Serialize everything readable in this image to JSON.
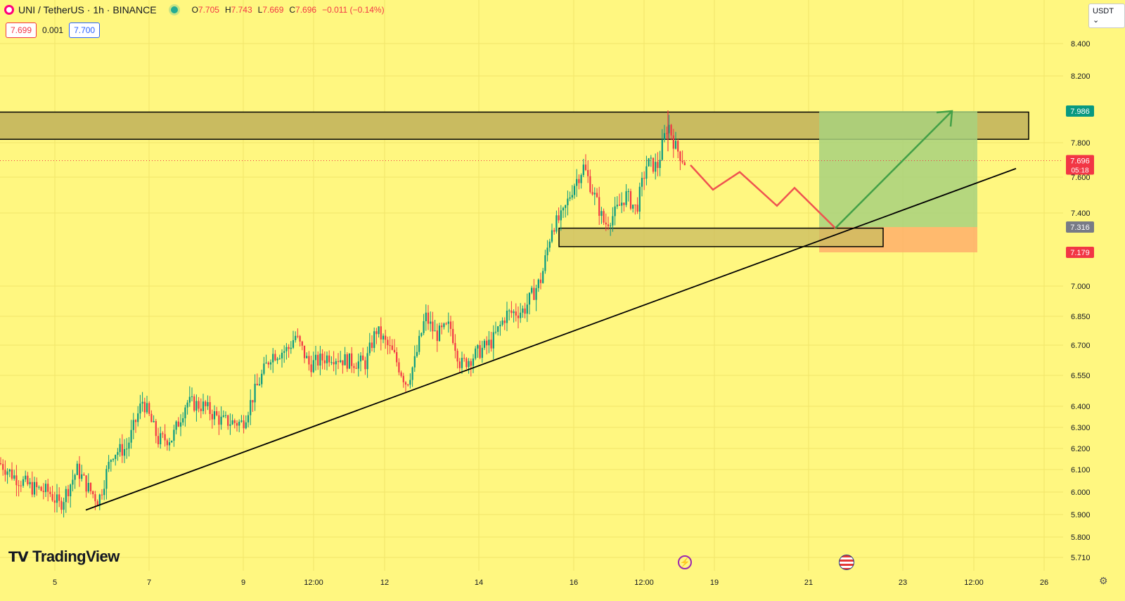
{
  "header": {
    "symbol": "UNI / TetherUS · 1h · BINANCE",
    "open_label": "O",
    "open": "7.705",
    "high_label": "H",
    "high": "7.743",
    "low_label": "L",
    "low": "7.669",
    "close_label": "C",
    "close": "7.696",
    "change": "−0.011 (−0.14%)"
  },
  "quote": {
    "bid": "7.699",
    "spread": "0.001",
    "ask": "7.700"
  },
  "currency_button": "USDT",
  "logo_text": "TradingView",
  "colors": {
    "background": "#fff780",
    "up": "#089981",
    "down": "#f23645",
    "zone": "#c9bb60",
    "target": "#a8d17e",
    "stop": "#ffb36b",
    "projection_up": "#43a047",
    "projection_down": "#ef5350"
  },
  "chart_data": {
    "type": "candlestick",
    "x_tick_labels": [
      "5",
      "7",
      "9",
      "12:00",
      "12",
      "14",
      "16",
      "12:00",
      "19",
      "21",
      "23",
      "12:00",
      "26"
    ],
    "y_tick_labels": [
      "8.400",
      "8.200",
      "7.800",
      "7.600",
      "7.400",
      "7.000",
      "6.850",
      "6.700",
      "6.550",
      "6.400",
      "6.300",
      "6.200",
      "6.100",
      "6.000",
      "5.900",
      "5.800",
      "5.710"
    ],
    "ylim": [
      5.7,
      8.4
    ],
    "price_labels": [
      {
        "value": "7.986",
        "color": "#089981"
      },
      {
        "value": "7.696",
        "color": "#f23645",
        "countdown": "05:18"
      },
      {
        "value": "7.316",
        "color": "#787b86"
      },
      {
        "value": "7.179",
        "color": "#f23645"
      }
    ],
    "current_price": 7.696,
    "anchors": [
      [
        0,
        6.13
      ],
      [
        20,
        6.07
      ],
      [
        45,
        6.02
      ],
      [
        70,
        6.0
      ],
      [
        85,
        5.94
      ],
      [
        110,
        6.1
      ],
      [
        125,
        6.02
      ],
      [
        140,
        5.96
      ],
      [
        160,
        6.18
      ],
      [
        180,
        6.2
      ],
      [
        203,
        6.43
      ],
      [
        225,
        6.24
      ],
      [
        245,
        6.25
      ],
      [
        265,
        6.42
      ],
      [
        290,
        6.4
      ],
      [
        315,
        6.33
      ],
      [
        345,
        6.32
      ],
      [
        360,
        6.45
      ],
      [
        385,
        6.65
      ],
      [
        410,
        6.68
      ],
      [
        420,
        6.75
      ],
      [
        440,
        6.6
      ],
      [
        470,
        6.65
      ],
      [
        495,
        6.62
      ],
      [
        520,
        6.61
      ],
      [
        535,
        6.78
      ],
      [
        560,
        6.65
      ],
      [
        578,
        6.51
      ],
      [
        590,
        6.62
      ],
      [
        605,
        6.85
      ],
      [
        620,
        6.75
      ],
      [
        640,
        6.8
      ],
      [
        655,
        6.6
      ],
      [
        675,
        6.65
      ],
      [
        700,
        6.72
      ],
      [
        720,
        6.86
      ],
      [
        745,
        6.88
      ],
      [
        770,
        7.04
      ],
      [
        785,
        7.32
      ],
      [
        800,
        7.38
      ],
      [
        815,
        7.55
      ],
      [
        830,
        7.66
      ],
      [
        845,
        7.5
      ],
      [
        860,
        7.33
      ],
      [
        875,
        7.4
      ],
      [
        890,
        7.5
      ],
      [
        905,
        7.42
      ],
      [
        920,
        7.68
      ],
      [
        935,
        7.66
      ],
      [
        950,
        7.92
      ],
      [
        960,
        7.78
      ],
      [
        975,
        7.68
      ]
    ],
    "support_zone": {
      "top": 7.82,
      "bottom": 7.98
    },
    "demand_zone": {
      "top": 7.21,
      "bottom": 7.31
    },
    "trendline": [
      [
        122,
        5.92
      ],
      [
        1445,
        7.65
      ]
    ],
    "projection_down": [
      [
        982,
        7.67
      ],
      [
        1014,
        7.53
      ],
      [
        1052,
        7.63
      ],
      [
        1105,
        7.44
      ],
      [
        1130,
        7.54
      ],
      [
        1188,
        7.31
      ]
    ],
    "projection_up": [
      [
        1188,
        7.31
      ],
      [
        1354,
        7.986
      ]
    ],
    "position": {
      "entry": 7.316,
      "target": 7.986,
      "stop": 7.179,
      "x_start": 1165,
      "x_end": 1390
    },
    "events": [
      "lightning",
      "us-flag"
    ]
  }
}
